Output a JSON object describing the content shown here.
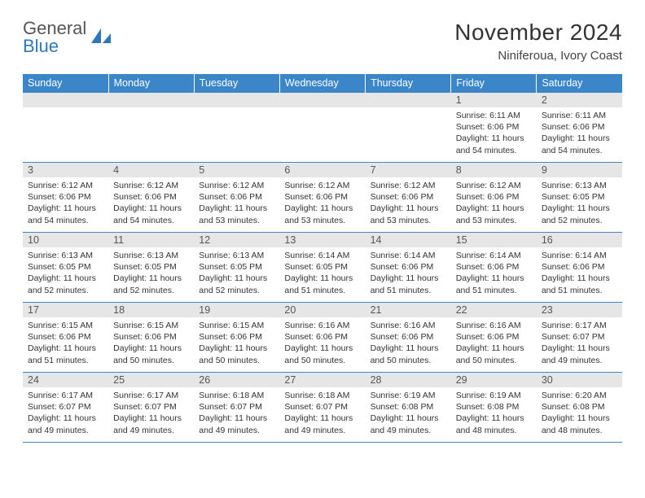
{
  "logo": {
    "line1": "General",
    "line2": "Blue"
  },
  "title": "November 2024",
  "location": "Niniferoua, Ivory Coast",
  "colors": {
    "header_bg": "#3b86c8",
    "header_text": "#ffffff",
    "daynum_bg": "#e6e6e6",
    "rule": "#3b86c8",
    "brand_blue": "#2f77bd",
    "brand_gray": "#555555"
  },
  "dayNames": [
    "Sunday",
    "Monday",
    "Tuesday",
    "Wednesday",
    "Thursday",
    "Friday",
    "Saturday"
  ],
  "weeks": [
    [
      {
        "n": "",
        "sr": "",
        "ss": "",
        "dl": ""
      },
      {
        "n": "",
        "sr": "",
        "ss": "",
        "dl": ""
      },
      {
        "n": "",
        "sr": "",
        "ss": "",
        "dl": ""
      },
      {
        "n": "",
        "sr": "",
        "ss": "",
        "dl": ""
      },
      {
        "n": "",
        "sr": "",
        "ss": "",
        "dl": ""
      },
      {
        "n": "1",
        "sr": "6:11 AM",
        "ss": "6:06 PM",
        "dl": "11 hours and 54 minutes."
      },
      {
        "n": "2",
        "sr": "6:11 AM",
        "ss": "6:06 PM",
        "dl": "11 hours and 54 minutes."
      }
    ],
    [
      {
        "n": "3",
        "sr": "6:12 AM",
        "ss": "6:06 PM",
        "dl": "11 hours and 54 minutes."
      },
      {
        "n": "4",
        "sr": "6:12 AM",
        "ss": "6:06 PM",
        "dl": "11 hours and 54 minutes."
      },
      {
        "n": "5",
        "sr": "6:12 AM",
        "ss": "6:06 PM",
        "dl": "11 hours and 53 minutes."
      },
      {
        "n": "6",
        "sr": "6:12 AM",
        "ss": "6:06 PM",
        "dl": "11 hours and 53 minutes."
      },
      {
        "n": "7",
        "sr": "6:12 AM",
        "ss": "6:06 PM",
        "dl": "11 hours and 53 minutes."
      },
      {
        "n": "8",
        "sr": "6:12 AM",
        "ss": "6:06 PM",
        "dl": "11 hours and 53 minutes."
      },
      {
        "n": "9",
        "sr": "6:13 AM",
        "ss": "6:05 PM",
        "dl": "11 hours and 52 minutes."
      }
    ],
    [
      {
        "n": "10",
        "sr": "6:13 AM",
        "ss": "6:05 PM",
        "dl": "11 hours and 52 minutes."
      },
      {
        "n": "11",
        "sr": "6:13 AM",
        "ss": "6:05 PM",
        "dl": "11 hours and 52 minutes."
      },
      {
        "n": "12",
        "sr": "6:13 AM",
        "ss": "6:05 PM",
        "dl": "11 hours and 52 minutes."
      },
      {
        "n": "13",
        "sr": "6:14 AM",
        "ss": "6:05 PM",
        "dl": "11 hours and 51 minutes."
      },
      {
        "n": "14",
        "sr": "6:14 AM",
        "ss": "6:06 PM",
        "dl": "11 hours and 51 minutes."
      },
      {
        "n": "15",
        "sr": "6:14 AM",
        "ss": "6:06 PM",
        "dl": "11 hours and 51 minutes."
      },
      {
        "n": "16",
        "sr": "6:14 AM",
        "ss": "6:06 PM",
        "dl": "11 hours and 51 minutes."
      }
    ],
    [
      {
        "n": "17",
        "sr": "6:15 AM",
        "ss": "6:06 PM",
        "dl": "11 hours and 51 minutes."
      },
      {
        "n": "18",
        "sr": "6:15 AM",
        "ss": "6:06 PM",
        "dl": "11 hours and 50 minutes."
      },
      {
        "n": "19",
        "sr": "6:15 AM",
        "ss": "6:06 PM",
        "dl": "11 hours and 50 minutes."
      },
      {
        "n": "20",
        "sr": "6:16 AM",
        "ss": "6:06 PM",
        "dl": "11 hours and 50 minutes."
      },
      {
        "n": "21",
        "sr": "6:16 AM",
        "ss": "6:06 PM",
        "dl": "11 hours and 50 minutes."
      },
      {
        "n": "22",
        "sr": "6:16 AM",
        "ss": "6:06 PM",
        "dl": "11 hours and 50 minutes."
      },
      {
        "n": "23",
        "sr": "6:17 AM",
        "ss": "6:07 PM",
        "dl": "11 hours and 49 minutes."
      }
    ],
    [
      {
        "n": "24",
        "sr": "6:17 AM",
        "ss": "6:07 PM",
        "dl": "11 hours and 49 minutes."
      },
      {
        "n": "25",
        "sr": "6:17 AM",
        "ss": "6:07 PM",
        "dl": "11 hours and 49 minutes."
      },
      {
        "n": "26",
        "sr": "6:18 AM",
        "ss": "6:07 PM",
        "dl": "11 hours and 49 minutes."
      },
      {
        "n": "27",
        "sr": "6:18 AM",
        "ss": "6:07 PM",
        "dl": "11 hours and 49 minutes."
      },
      {
        "n": "28",
        "sr": "6:19 AM",
        "ss": "6:08 PM",
        "dl": "11 hours and 49 minutes."
      },
      {
        "n": "29",
        "sr": "6:19 AM",
        "ss": "6:08 PM",
        "dl": "11 hours and 48 minutes."
      },
      {
        "n": "30",
        "sr": "6:20 AM",
        "ss": "6:08 PM",
        "dl": "11 hours and 48 minutes."
      }
    ]
  ],
  "labels": {
    "sunrise": "Sunrise:",
    "sunset": "Sunset:",
    "daylight": "Daylight:"
  }
}
